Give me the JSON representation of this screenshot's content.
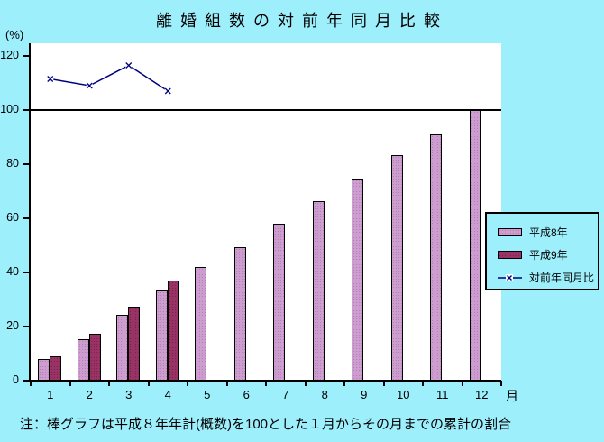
{
  "title": "離婚組数の対前年同月比較",
  "y_axis_unit_label": "(%)",
  "x_axis_unit_label": "月",
  "footnote": "注：棒グラフは平成８年年計(概数)を100とした１月からその月までの累計の割合",
  "colors": {
    "background": "#9EEFFC",
    "plot_background": "#FFFFFF",
    "bar_heisei8": "#CE9DD0",
    "bar_heisei9": "#993366",
    "trend_line": "#000080",
    "axis": "#000000"
  },
  "legend": {
    "items": [
      {
        "label": "平成8年",
        "type": "bar",
        "color": "#CE9DD0"
      },
      {
        "label": "平成9年",
        "type": "bar",
        "color": "#993366"
      },
      {
        "label": "対前年同月比",
        "type": "line",
        "color": "#000080"
      }
    ]
  },
  "chart_data": {
    "type": "bar",
    "title": "離婚組数の対前年同月比較",
    "xlabel": "月",
    "ylabel": "(%)",
    "categories": [
      "1",
      "2",
      "3",
      "4",
      "5",
      "6",
      "7",
      "8",
      "9",
      "10",
      "11",
      "12"
    ],
    "yticks": [
      0,
      20,
      40,
      60,
      80,
      100,
      120
    ],
    "ylim": [
      0,
      124
    ],
    "reference_line": 100,
    "grid": false,
    "legend_position": "right",
    "series": [
      {
        "name": "平成8年",
        "type": "bar",
        "values": [
          8,
          15.4,
          24.5,
          33.4,
          42,
          49.5,
          58,
          66.4,
          74.8,
          83.4,
          91,
          100
        ]
      },
      {
        "name": "平成9年",
        "type": "bar",
        "values": [
          9,
          17.3,
          27.5,
          37.1
        ]
      },
      {
        "name": "対前年同月比",
        "type": "line",
        "values": [
          111.5,
          109,
          116.5,
          107
        ]
      }
    ]
  }
}
